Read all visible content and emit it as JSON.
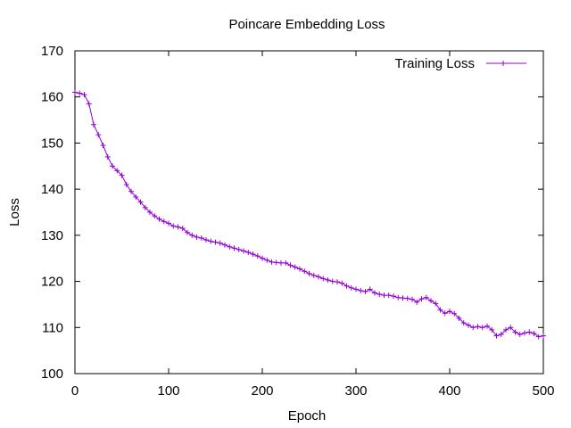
{
  "chart_data": {
    "type": "line",
    "title": "Poincare Embedding Loss",
    "xlabel": "Epoch",
    "ylabel": "Loss",
    "xlim": [
      0,
      500
    ],
    "ylim": [
      100,
      170
    ],
    "xticks": [
      0,
      100,
      200,
      300,
      400,
      500
    ],
    "yticks": [
      100,
      110,
      120,
      130,
      140,
      150,
      160,
      170
    ],
    "grid": false,
    "legend_position": "top-right",
    "series": [
      {
        "name": "Training Loss",
        "color": "#9400d3",
        "marker": "plus",
        "points": [
          [
            0,
            161.0
          ],
          [
            5,
            160.8
          ],
          [
            10,
            160.5
          ],
          [
            15,
            158.5
          ],
          [
            20,
            154.0
          ],
          [
            25,
            151.8
          ],
          [
            30,
            149.5
          ],
          [
            35,
            147.0
          ],
          [
            40,
            145.0
          ],
          [
            45,
            144.0
          ],
          [
            50,
            143.0
          ],
          [
            55,
            141.0
          ],
          [
            60,
            139.5
          ],
          [
            65,
            138.3
          ],
          [
            70,
            137.2
          ],
          [
            75,
            136.0
          ],
          [
            80,
            135.0
          ],
          [
            85,
            134.2
          ],
          [
            90,
            133.5
          ],
          [
            95,
            133.0
          ],
          [
            100,
            132.6
          ],
          [
            105,
            132.0
          ],
          [
            110,
            131.8
          ],
          [
            115,
            131.5
          ],
          [
            120,
            130.6
          ],
          [
            125,
            130.0
          ],
          [
            130,
            129.6
          ],
          [
            135,
            129.4
          ],
          [
            140,
            129.0
          ],
          [
            145,
            128.7
          ],
          [
            150,
            128.5
          ],
          [
            155,
            128.3
          ],
          [
            160,
            127.9
          ],
          [
            165,
            127.5
          ],
          [
            170,
            127.2
          ],
          [
            175,
            126.9
          ],
          [
            180,
            126.6
          ],
          [
            185,
            126.3
          ],
          [
            190,
            125.9
          ],
          [
            195,
            125.5
          ],
          [
            200,
            125.0
          ],
          [
            205,
            124.6
          ],
          [
            210,
            124.2
          ],
          [
            215,
            124.1
          ],
          [
            220,
            124.0
          ],
          [
            225,
            124.0
          ],
          [
            230,
            123.5
          ],
          [
            235,
            123.1
          ],
          [
            240,
            122.7
          ],
          [
            245,
            122.2
          ],
          [
            250,
            121.7
          ],
          [
            255,
            121.3
          ],
          [
            260,
            121.0
          ],
          [
            265,
            120.6
          ],
          [
            270,
            120.3
          ],
          [
            275,
            120.0
          ],
          [
            280,
            119.9
          ],
          [
            285,
            119.6
          ],
          [
            290,
            119.0
          ],
          [
            295,
            118.6
          ],
          [
            300,
            118.3
          ],
          [
            305,
            118.0
          ],
          [
            310,
            117.8
          ],
          [
            315,
            118.3
          ],
          [
            320,
            117.5
          ],
          [
            325,
            117.2
          ],
          [
            330,
            117.0
          ],
          [
            335,
            117.0
          ],
          [
            340,
            116.8
          ],
          [
            345,
            116.5
          ],
          [
            350,
            116.4
          ],
          [
            355,
            116.3
          ],
          [
            360,
            116.1
          ],
          [
            365,
            115.5
          ],
          [
            370,
            116.2
          ],
          [
            375,
            116.5
          ],
          [
            380,
            115.8
          ],
          [
            385,
            115.2
          ],
          [
            390,
            113.8
          ],
          [
            395,
            113.1
          ],
          [
            400,
            113.5
          ],
          [
            405,
            113.0
          ],
          [
            410,
            112.0
          ],
          [
            415,
            111.0
          ],
          [
            420,
            110.5
          ],
          [
            425,
            110.0
          ],
          [
            430,
            110.2
          ],
          [
            435,
            110.0
          ],
          [
            440,
            110.3
          ],
          [
            445,
            109.5
          ],
          [
            450,
            108.2
          ],
          [
            455,
            108.5
          ],
          [
            460,
            109.5
          ],
          [
            465,
            110.0
          ],
          [
            470,
            109.0
          ],
          [
            475,
            108.5
          ],
          [
            480,
            108.8
          ],
          [
            485,
            109.0
          ],
          [
            490,
            108.7
          ],
          [
            495,
            108.0
          ],
          [
            500,
            108.2
          ]
        ]
      }
    ]
  }
}
